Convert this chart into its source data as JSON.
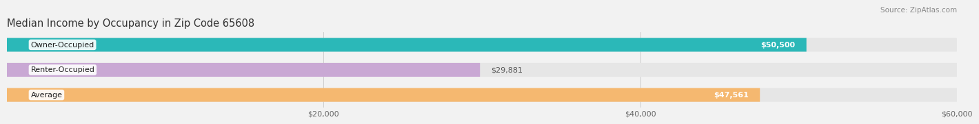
{
  "title": "Median Income by Occupancy in Zip Code 65608",
  "source": "Source: ZipAtlas.com",
  "categories": [
    "Owner-Occupied",
    "Renter-Occupied",
    "Average"
  ],
  "values": [
    50500,
    29881,
    47561
  ],
  "bar_colors": [
    "#2bb8b8",
    "#c9a8d4",
    "#f5b870"
  ],
  "value_labels": [
    "$50,500",
    "$29,881",
    "$47,561"
  ],
  "value_inside": [
    true,
    false,
    true
  ],
  "xlim_data": [
    0,
    60000
  ],
  "xticks": [
    20000,
    40000,
    60000
  ],
  "xtick_labels": [
    "$20,000",
    "$40,000",
    "$60,000"
  ],
  "bg_color": "#f2f2f2",
  "bar_bg_color": "#e6e6e6",
  "title_fontsize": 10.5,
  "source_fontsize": 7.5,
  "label_fontsize": 8,
  "value_fontsize": 8,
  "tick_fontsize": 8
}
